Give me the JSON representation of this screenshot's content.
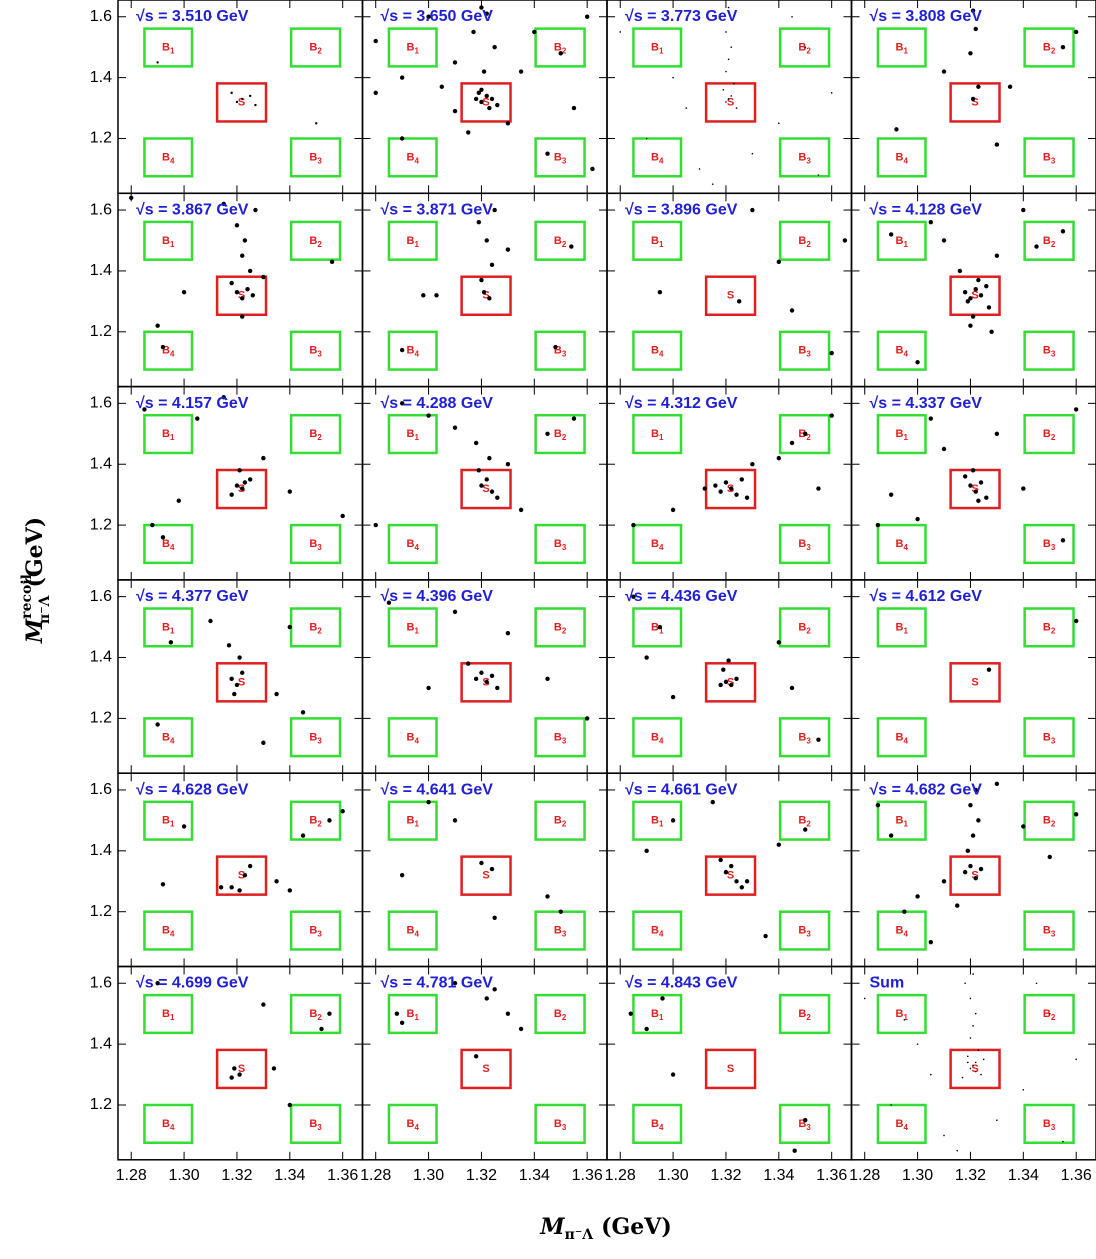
{
  "chart_data": {
    "type": "scatter",
    "color": "#000000",
    "title_color": "#1f1fd6",
    "xlim": [
      1.275,
      1.3675
    ],
    "ylim": [
      1.02,
      1.655
    ],
    "xticks": [
      1.28,
      {
        "value": 1.3,
        "label": "1.30"
      },
      1.32,
      1.34,
      1.36
    ],
    "yticks": [
      1.2,
      1.4,
      1.6
    ],
    "x_label": {
      "symbol": "M",
      "subscript": "π⁻Λ",
      "unit": "(GeV)"
    },
    "y_label": {
      "symbol": "M",
      "superscript": "recoil",
      "subscript": "π⁻Λ",
      "unit": "(GeV)"
    },
    "regions": [
      {
        "label": "B",
        "sub": "1",
        "color": "#33dd33",
        "xlim": [
          1.285,
          1.303
        ],
        "ylim": [
          1.437,
          1.561
        ]
      },
      {
        "label": "B",
        "sub": "2",
        "color": "#33dd33",
        "xlim": [
          1.3405,
          1.359
        ],
        "ylim": [
          1.437,
          1.561
        ]
      },
      {
        "label": "S",
        "color": "#e02020",
        "xlim": [
          1.3125,
          1.331
        ],
        "ylim": [
          1.256,
          1.381
        ]
      },
      {
        "label": "B",
        "sub": "3",
        "color": "#33dd33",
        "xlim": [
          1.3405,
          1.359
        ],
        "ylim": [
          1.076,
          1.2
        ]
      },
      {
        "label": "B",
        "sub": "4",
        "color": "#33dd33",
        "xlim": [
          1.285,
          1.303
        ],
        "ylim": [
          1.076,
          1.2
        ]
      }
    ],
    "panels": [
      {
        "title": "√s = 3.510 GeV",
        "marker_radius": 1.2,
        "x": [
          1.322,
          1.325,
          1.32,
          1.318,
          1.327,
          1.29,
          1.35,
          1.31
        ],
        "y": [
          1.33,
          1.34,
          1.32,
          1.35,
          1.31,
          1.45,
          1.25,
          1.6
        ]
      },
      {
        "title": "√s = 3.650 GeV",
        "marker_radius": 2.2,
        "x": [
          1.318,
          1.32,
          1.322,
          1.324,
          1.326,
          1.32,
          1.323,
          1.319,
          1.321,
          1.325,
          1.317,
          1.3,
          1.29,
          1.28,
          1.31,
          1.34,
          1.35,
          1.36,
          1.33,
          1.315,
          1.322,
          1.32,
          1.345,
          1.29,
          1.355,
          1.305,
          1.335,
          1.28,
          1.362,
          1.31
        ],
        "y": [
          1.33,
          1.32,
          1.34,
          1.33,
          1.31,
          1.36,
          1.3,
          1.35,
          1.42,
          1.5,
          1.55,
          1.6,
          1.4,
          1.35,
          1.45,
          1.55,
          1.48,
          1.6,
          1.25,
          1.22,
          1.61,
          1.63,
          1.15,
          1.2,
          1.3,
          1.37,
          1.42,
          1.52,
          1.1,
          1.29
        ]
      },
      {
        "title": "√s = 3.773 GeV",
        "marker_radius": 0.8,
        "x": [
          1.32,
          1.321,
          1.322,
          1.319,
          1.323,
          1.32,
          1.321,
          1.322,
          1.32,
          1.318,
          1.324,
          1.321,
          1.3,
          1.29,
          1.34,
          1.35,
          1.31,
          1.33,
          1.28,
          1.36,
          1.305,
          1.345,
          1.315,
          1.355
        ],
        "y": [
          1.32,
          1.33,
          1.34,
          1.36,
          1.38,
          1.42,
          1.46,
          1.5,
          1.55,
          1.6,
          1.3,
          1.63,
          1.4,
          1.2,
          1.25,
          1.5,
          1.1,
          1.15,
          1.55,
          1.35,
          1.3,
          1.6,
          1.05,
          1.08
        ]
      },
      {
        "title": "√s = 3.808 GeV",
        "marker_radius": 2.2,
        "x": [
          1.321,
          1.323,
          1.32,
          1.322,
          1.321,
          1.292,
          1.355,
          1.335,
          1.31,
          1.36,
          1.33
        ],
        "y": [
          1.33,
          1.37,
          1.48,
          1.56,
          1.62,
          1.23,
          1.5,
          1.37,
          1.42,
          1.55,
          1.18
        ]
      },
      {
        "title": "√s = 3.867 GeV",
        "marker_radius": 2.2,
        "x": [
          1.32,
          1.322,
          1.324,
          1.326,
          1.318,
          1.325,
          1.322,
          1.323,
          1.32,
          1.327,
          1.315,
          1.29,
          1.292,
          1.3,
          1.356,
          1.33,
          1.322,
          1.28
        ],
        "y": [
          1.33,
          1.31,
          1.34,
          1.32,
          1.36,
          1.4,
          1.45,
          1.5,
          1.55,
          1.6,
          1.62,
          1.22,
          1.15,
          1.33,
          1.43,
          1.38,
          1.25,
          1.64
        ]
      },
      {
        "title": "√s = 3.871 GeV",
        "marker_radius": 2.2,
        "x": [
          1.321,
          1.323,
          1.32,
          1.324,
          1.322,
          1.319,
          1.325,
          1.298,
          1.303,
          1.33,
          1.348,
          1.354,
          1.29
        ],
        "y": [
          1.33,
          1.31,
          1.37,
          1.42,
          1.5,
          1.56,
          1.6,
          1.32,
          1.32,
          1.47,
          1.15,
          1.48,
          1.14
        ]
      },
      {
        "title": "√s = 3.896 GeV",
        "marker_radius": 2.2,
        "x": [
          1.295,
          1.325,
          1.345,
          1.34,
          1.33,
          1.365,
          1.36
        ],
        "y": [
          1.33,
          1.3,
          1.27,
          1.43,
          1.6,
          1.5,
          1.13
        ]
      },
      {
        "title": "√s = 4.128 GeV",
        "marker_radius": 2.2,
        "x": [
          1.318,
          1.32,
          1.322,
          1.324,
          1.326,
          1.319,
          1.323,
          1.316,
          1.327,
          1.321,
          1.33,
          1.31,
          1.305,
          1.29,
          1.3,
          1.345,
          1.355,
          1.34,
          1.32,
          1.328
        ],
        "y": [
          1.33,
          1.31,
          1.34,
          1.32,
          1.35,
          1.3,
          1.37,
          1.4,
          1.28,
          1.25,
          1.45,
          1.5,
          1.56,
          1.52,
          1.1,
          1.48,
          1.53,
          1.6,
          1.22,
          1.2
        ]
      },
      {
        "title": "√s = 4.157 GeV",
        "marker_radius": 2.2,
        "x": [
          1.32,
          1.322,
          1.323,
          1.318,
          1.325,
          1.321,
          1.315,
          1.288,
          1.292,
          1.298,
          1.33,
          1.34,
          1.305,
          1.36,
          1.285
        ],
        "y": [
          1.33,
          1.32,
          1.34,
          1.3,
          1.35,
          1.38,
          1.62,
          1.2,
          1.16,
          1.28,
          1.42,
          1.31,
          1.55,
          1.23,
          1.58
        ]
      },
      {
        "title": "√s = 4.288 GeV",
        "marker_radius": 2.2,
        "x": [
          1.32,
          1.322,
          1.324,
          1.319,
          1.323,
          1.326,
          1.318,
          1.31,
          1.3,
          1.29,
          1.33,
          1.345,
          1.355,
          1.28,
          1.335
        ],
        "y": [
          1.33,
          1.35,
          1.31,
          1.38,
          1.42,
          1.29,
          1.47,
          1.52,
          1.56,
          1.6,
          1.4,
          1.5,
          1.55,
          1.2,
          1.25
        ]
      },
      {
        "title": "√s = 4.312 GeV",
        "marker_radius": 2.2,
        "x": [
          1.316,
          1.318,
          1.32,
          1.322,
          1.324,
          1.326,
          1.328,
          1.312,
          1.33,
          1.34,
          1.345,
          1.35,
          1.36,
          1.285,
          1.3,
          1.355
        ],
        "y": [
          1.33,
          1.31,
          1.34,
          1.32,
          1.3,
          1.35,
          1.29,
          1.32,
          1.4,
          1.42,
          1.47,
          1.5,
          1.56,
          1.2,
          1.25,
          1.32
        ]
      },
      {
        "title": "√s = 4.337 GeV",
        "marker_radius": 2.2,
        "x": [
          1.32,
          1.322,
          1.324,
          1.318,
          1.326,
          1.321,
          1.323,
          1.31,
          1.305,
          1.29,
          1.285,
          1.34,
          1.355,
          1.36,
          1.33,
          1.3
        ],
        "y": [
          1.33,
          1.31,
          1.34,
          1.36,
          1.29,
          1.38,
          1.28,
          1.45,
          1.55,
          1.3,
          1.2,
          1.32,
          1.15,
          1.58,
          1.5,
          1.22
        ]
      },
      {
        "title": "√s = 4.377 GeV",
        "marker_radius": 2.2,
        "x": [
          1.318,
          1.32,
          1.322,
          1.319,
          1.321,
          1.317,
          1.295,
          1.29,
          1.335,
          1.34,
          1.345,
          1.31,
          1.33
        ],
        "y": [
          1.33,
          1.31,
          1.35,
          1.28,
          1.4,
          1.44,
          1.45,
          1.18,
          1.28,
          1.5,
          1.22,
          1.52,
          1.12
        ]
      },
      {
        "title": "√s = 4.396 GeV",
        "marker_radius": 2.2,
        "x": [
          1.318,
          1.32,
          1.322,
          1.324,
          1.326,
          1.315,
          1.31,
          1.3,
          1.285,
          1.33,
          1.345,
          1.36
        ],
        "y": [
          1.33,
          1.35,
          1.32,
          1.34,
          1.3,
          1.38,
          1.55,
          1.3,
          1.58,
          1.48,
          1.33,
          1.2
        ]
      },
      {
        "title": "√s = 4.436 GeV",
        "marker_radius": 2.2,
        "x": [
          1.318,
          1.32,
          1.322,
          1.324,
          1.319,
          1.321,
          1.3,
          1.29,
          1.295,
          1.34,
          1.345,
          1.285,
          1.355
        ],
        "y": [
          1.31,
          1.32,
          1.31,
          1.33,
          1.36,
          1.39,
          1.27,
          1.4,
          1.5,
          1.45,
          1.3,
          1.6,
          1.13
        ]
      },
      {
        "title": "√s = 4.612 GeV",
        "marker_radius": 2.2,
        "x": [
          1.327,
          1.36
        ],
        "y": [
          1.36,
          1.52
        ]
      },
      {
        "title": "√s = 4.628 GeV",
        "marker_radius": 2.2,
        "x": [
          1.318,
          1.321,
          1.323,
          1.325,
          1.314,
          1.3,
          1.292,
          1.335,
          1.34,
          1.345,
          1.355,
          1.36
        ],
        "y": [
          1.28,
          1.27,
          1.32,
          1.35,
          1.28,
          1.48,
          1.29,
          1.3,
          1.27,
          1.45,
          1.5,
          1.53
        ]
      },
      {
        "title": "√s = 4.641 GeV",
        "marker_radius": 2.2,
        "x": [
          1.32,
          1.324,
          1.31,
          1.3,
          1.29,
          1.345,
          1.35,
          1.325
        ],
        "y": [
          1.36,
          1.34,
          1.5,
          1.56,
          1.32,
          1.25,
          1.2,
          1.18
        ]
      },
      {
        "title": "√s = 4.661 GeV",
        "marker_radius": 2.2,
        "x": [
          1.32,
          1.322,
          1.324,
          1.326,
          1.318,
          1.328,
          1.3,
          1.29,
          1.34,
          1.35,
          1.335,
          1.315
        ],
        "y": [
          1.33,
          1.35,
          1.3,
          1.28,
          1.37,
          1.3,
          1.5,
          1.4,
          1.42,
          1.47,
          1.12,
          1.56
        ]
      },
      {
        "title": "√s = 4.682 GeV",
        "marker_radius": 2.2,
        "x": [
          1.318,
          1.32,
          1.322,
          1.324,
          1.319,
          1.321,
          1.323,
          1.32,
          1.322,
          1.29,
          1.295,
          1.3,
          1.305,
          1.31,
          1.285,
          1.34,
          1.35,
          1.33,
          1.36,
          1.315
        ],
        "y": [
          1.33,
          1.35,
          1.31,
          1.34,
          1.4,
          1.45,
          1.5,
          1.55,
          1.6,
          1.45,
          1.2,
          1.25,
          1.1,
          1.3,
          1.55,
          1.48,
          1.38,
          1.62,
          1.52,
          1.22
        ]
      },
      {
        "title": "√s = 4.699 GeV",
        "marker_radius": 2.2,
        "x": [
          1.319,
          1.321,
          1.318,
          1.334,
          1.34,
          1.352,
          1.355,
          1.29,
          1.33
        ],
        "y": [
          1.32,
          1.3,
          1.29,
          1.32,
          1.2,
          1.45,
          1.5,
          1.6,
          1.53
        ]
      },
      {
        "title": "√s = 4.781 GeV",
        "marker_radius": 2.2,
        "x": [
          1.288,
          1.29,
          1.31,
          1.322,
          1.325,
          1.33,
          1.335,
          1.318
        ],
        "y": [
          1.5,
          1.47,
          1.6,
          1.55,
          1.58,
          1.5,
          1.45,
          1.36
        ]
      },
      {
        "title": "√s = 4.843 GeV",
        "marker_radius": 2.2,
        "x": [
          1.284,
          1.29,
          1.296,
          1.3,
          1.35,
          1.346
        ],
        "y": [
          1.5,
          1.45,
          1.55,
          1.3,
          1.15,
          1.05
        ]
      },
      {
        "title": "Sum",
        "marker_radius": 0.8,
        "x": [
          1.32,
          1.321,
          1.322,
          1.319,
          1.323,
          1.32,
          1.321,
          1.322,
          1.32,
          1.318,
          1.324,
          1.321,
          1.3,
          1.29,
          1.34,
          1.35,
          1.31,
          1.33,
          1.28,
          1.36,
          1.305,
          1.345,
          1.315,
          1.355,
          1.322,
          1.319,
          1.325,
          1.317,
          1.295,
          1.285
        ],
        "y": [
          1.32,
          1.33,
          1.34,
          1.36,
          1.38,
          1.42,
          1.46,
          1.5,
          1.55,
          1.6,
          1.3,
          1.63,
          1.4,
          1.2,
          1.25,
          1.5,
          1.1,
          1.15,
          1.55,
          1.35,
          1.3,
          1.6,
          1.05,
          1.08,
          1.31,
          1.34,
          1.35,
          1.29,
          1.48,
          1.62
        ]
      }
    ]
  }
}
